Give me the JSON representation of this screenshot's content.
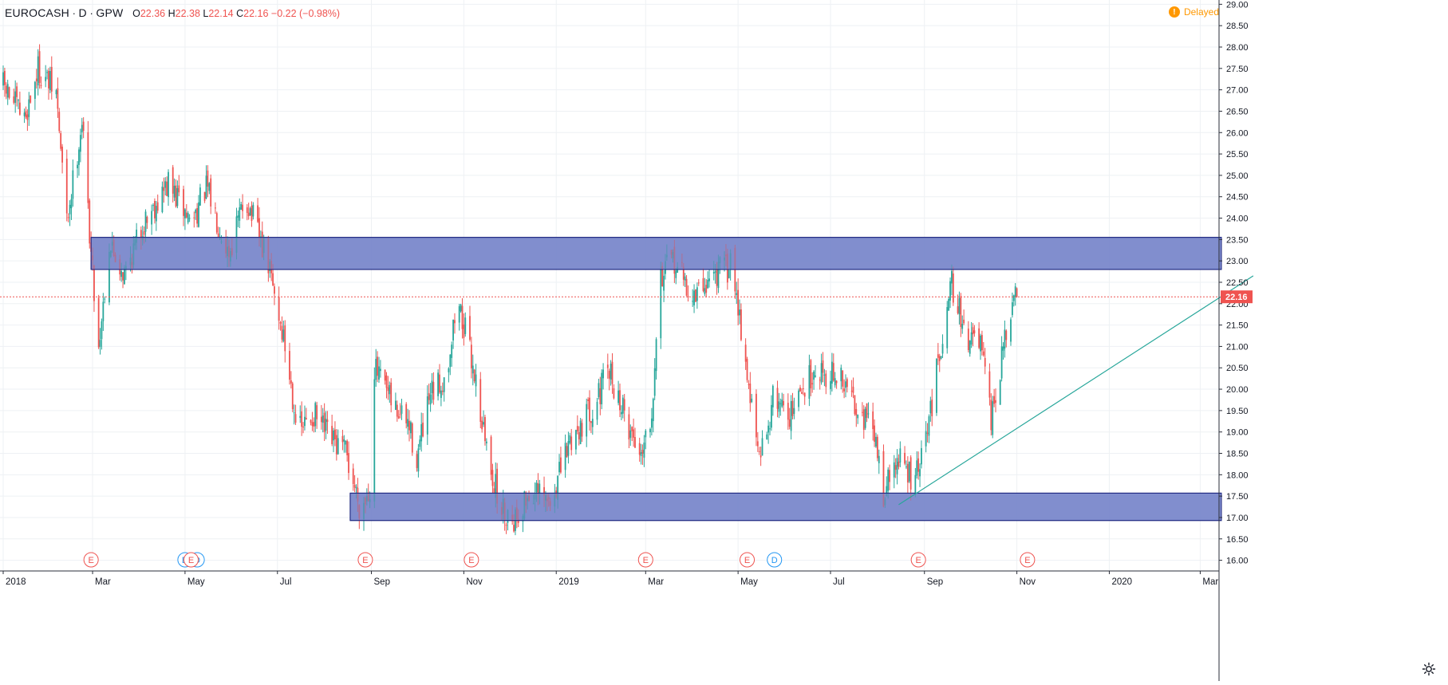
{
  "header": {
    "symbol": "EUROCASH",
    "interval": "D",
    "exchange": "GPW",
    "open_label": "O",
    "open": "22.36",
    "high_label": "H",
    "high": "22.38",
    "low_label": "L",
    "low": "22.14",
    "close_label": "C",
    "close": "22.16",
    "change": "−0.22 (−0.98%)",
    "delayed_label": "Delayed",
    "delayed_icon": "info-badge-icon"
  },
  "colors": {
    "up": "#26a69a",
    "down": "#ef5350",
    "zone_fill": "#7986cb",
    "zone_border": "#1a237e",
    "trendline": "#26a69a",
    "grid": "#eef1f4",
    "last_price": "#ef5350",
    "earnings_event": "#ef5350",
    "dividend_event": "#2196f3",
    "delayed": "#ff9800"
  },
  "chart_data": {
    "type": "candlestick",
    "title": "EUROCASH · D · GPW",
    "ylim": [
      15.75,
      29.1
    ],
    "y_ticks": [
      "16.00",
      "16.50",
      "17.00",
      "17.50",
      "18.00",
      "18.50",
      "19.00",
      "19.50",
      "20.00",
      "20.50",
      "21.00",
      "21.50",
      "22.00",
      "22.50",
      "23.00",
      "23.50",
      "24.00",
      "24.50",
      "25.00",
      "25.50",
      "26.00",
      "26.50",
      "27.00",
      "27.50",
      "28.00",
      "28.50",
      "29.00"
    ],
    "x_ticks": [
      {
        "label": "2018",
        "date": "2018-01-01"
      },
      {
        "label": "Mar",
        "date": "2018-03-01"
      },
      {
        "label": "May",
        "date": "2018-05-01"
      },
      {
        "label": "Jul",
        "date": "2018-07-01"
      },
      {
        "label": "Sep",
        "date": "2018-09-01"
      },
      {
        "label": "Nov",
        "date": "2018-11-01"
      },
      {
        "label": "2019",
        "date": "2019-01-01"
      },
      {
        "label": "Mar",
        "date": "2019-03-01"
      },
      {
        "label": "May",
        "date": "2019-05-01"
      },
      {
        "label": "Jul",
        "date": "2019-07-01"
      },
      {
        "label": "Sep",
        "date": "2019-09-01"
      },
      {
        "label": "Nov",
        "date": "2019-11-01"
      },
      {
        "label": "2020",
        "date": "2020-01-01"
      },
      {
        "label": "Mar",
        "date": "2020-03-01"
      }
    ],
    "x_range": [
      "2018-01-01",
      "2020-03-15"
    ],
    "last_price": 22.16,
    "last_price_label": "22.16",
    "path_points": [
      [
        "2018-01-01",
        27.1
      ],
      [
        "2018-01-15",
        26.3
      ],
      [
        "2018-01-24",
        27.5
      ],
      [
        "2018-02-05",
        26.9
      ],
      [
        "2018-02-12",
        23.9
      ],
      [
        "2018-02-22",
        26.3
      ],
      [
        "2018-02-28",
        23.2
      ],
      [
        "2018-03-05",
        21.0
      ],
      [
        "2018-03-12",
        23.4
      ],
      [
        "2018-03-22",
        22.7
      ],
      [
        "2018-04-05",
        24.0
      ],
      [
        "2018-04-20",
        24.8
      ],
      [
        "2018-05-05",
        23.9
      ],
      [
        "2018-05-15",
        24.7
      ],
      [
        "2018-05-30",
        23.2
      ],
      [
        "2018-06-10",
        24.5
      ],
      [
        "2018-06-25",
        22.9
      ],
      [
        "2018-07-05",
        21.2
      ],
      [
        "2018-07-15",
        19.0
      ],
      [
        "2018-07-25",
        19.4
      ],
      [
        "2018-08-05",
        18.8
      ],
      [
        "2018-08-15",
        18.5
      ],
      [
        "2018-08-25",
        17.2
      ],
      [
        "2018-09-01",
        17.8
      ],
      [
        "2018-09-03",
        20.5
      ],
      [
        "2018-09-15",
        19.6
      ],
      [
        "2018-09-25",
        19.2
      ],
      [
        "2018-10-01",
        18.4
      ],
      [
        "2018-10-10",
        19.8
      ],
      [
        "2018-10-20",
        20.3
      ],
      [
        "2018-10-28",
        22.1
      ],
      [
        "2018-11-08",
        20.4
      ],
      [
        "2018-11-15",
        18.8
      ],
      [
        "2018-11-25",
        17.2
      ],
      [
        "2018-12-05",
        17.0
      ],
      [
        "2018-12-15",
        17.6
      ],
      [
        "2018-12-28",
        17.3
      ],
      [
        "2019-01-10",
        18.8
      ],
      [
        "2019-01-25",
        19.6
      ],
      [
        "2019-02-05",
        20.4
      ],
      [
        "2019-02-15",
        19.4
      ],
      [
        "2019-02-25",
        18.5
      ],
      [
        "2019-03-05",
        19.5
      ],
      [
        "2019-03-10",
        22.6
      ],
      [
        "2019-03-20",
        23.0
      ],
      [
        "2019-04-01",
        22.1
      ],
      [
        "2019-04-15",
        22.7
      ],
      [
        "2019-04-28",
        22.9
      ],
      [
        "2019-05-06",
        20.6
      ],
      [
        "2019-05-15",
        18.3
      ],
      [
        "2019-05-25",
        19.9
      ],
      [
        "2019-06-05",
        19.4
      ],
      [
        "2019-06-20",
        20.5
      ],
      [
        "2019-07-05",
        20.3
      ],
      [
        "2019-07-20",
        19.6
      ],
      [
        "2019-07-30",
        18.9
      ],
      [
        "2019-08-05",
        17.6
      ],
      [
        "2019-08-15",
        18.4
      ],
      [
        "2019-08-25",
        17.8
      ],
      [
        "2019-09-01",
        18.6
      ],
      [
        "2019-09-10",
        20.6
      ],
      [
        "2019-09-18",
        22.6
      ],
      [
        "2019-09-28",
        21.3
      ],
      [
        "2019-10-08",
        21.0
      ],
      [
        "2019-10-15",
        19.2
      ],
      [
        "2019-10-22",
        20.7
      ],
      [
        "2019-10-28",
        21.8
      ],
      [
        "2019-11-01",
        22.2
      ]
    ],
    "zones": [
      {
        "from": "2018-02-28",
        "to": "2020-03-15",
        "low": 22.8,
        "high": 23.55
      },
      {
        "from": "2018-08-18",
        "to": "2020-03-15",
        "low": 16.93,
        "high": 17.57
      }
    ],
    "trendline": {
      "from": [
        "2019-08-15",
        17.3
      ],
      "to": [
        "2020-04-05",
        22.65
      ]
    },
    "events": [
      {
        "type": "earnings",
        "label": "E",
        "date": "2018-02-28"
      },
      {
        "type": "dividend",
        "label": "D",
        "date": "2018-05-01"
      },
      {
        "type": "dividend",
        "label": "D",
        "date": "2018-05-09"
      },
      {
        "type": "earnings",
        "label": "E",
        "date": "2018-05-05"
      },
      {
        "type": "earnings",
        "label": "E",
        "date": "2018-08-28"
      },
      {
        "type": "earnings",
        "label": "E",
        "date": "2018-11-06"
      },
      {
        "type": "earnings",
        "label": "E",
        "date": "2019-03-01"
      },
      {
        "type": "earnings",
        "label": "E",
        "date": "2019-05-07"
      },
      {
        "type": "dividend",
        "label": "D",
        "date": "2019-05-25"
      },
      {
        "type": "earnings",
        "label": "E",
        "date": "2019-08-28"
      },
      {
        "type": "earnings",
        "label": "E",
        "date": "2019-11-08"
      }
    ]
  }
}
